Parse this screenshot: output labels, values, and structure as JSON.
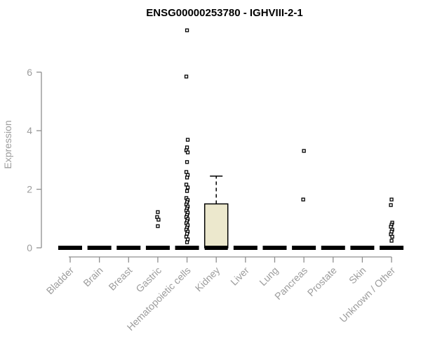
{
  "chart_data": {
    "type": "boxplot",
    "title": "ENSG00000253780 - IGHVIII-2-1",
    "xlabel": "",
    "ylabel": "Expression",
    "ylim": [
      0,
      7.6
    ],
    "yticks": [
      0,
      2,
      4,
      6
    ],
    "grid": false,
    "legend": "none",
    "categories": [
      "Bladder",
      "Brain",
      "Breast",
      "Gastric",
      "Hematopoietic cells",
      "Kidney",
      "Liver",
      "Lung",
      "Pancreas",
      "Prostate",
      "Skin",
      "Unknown / Other"
    ],
    "boxes": [
      {
        "category": "Bladder",
        "q1": 0,
        "median": 0,
        "q3": 0,
        "whisker_low": 0,
        "whisker_high": 0,
        "outliers": []
      },
      {
        "category": "Brain",
        "q1": 0,
        "median": 0,
        "q3": 0,
        "whisker_low": 0,
        "whisker_high": 0,
        "outliers": []
      },
      {
        "category": "Breast",
        "q1": 0,
        "median": 0,
        "q3": 0,
        "whisker_low": 0,
        "whisker_high": 0,
        "outliers": []
      },
      {
        "category": "Gastric",
        "q1": 0,
        "median": 0,
        "q3": 0,
        "whisker_low": 0,
        "whisker_high": 0,
        "outliers": [
          1.22,
          1.05,
          0.96,
          0.74
        ]
      },
      {
        "category": "Hematopoietic cells",
        "q1": 0,
        "median": 0,
        "q3": 0,
        "whisker_low": 0,
        "whisker_high": 0,
        "outliers": [
          7.43,
          5.85,
          3.69,
          3.43,
          3.33,
          3.26,
          2.93,
          2.59,
          2.49,
          2.4,
          2.16,
          2.06,
          1.94,
          1.7,
          1.63,
          1.56,
          1.48,
          1.41,
          1.34,
          1.27,
          1.2,
          1.12,
          1.05,
          0.98,
          0.91,
          0.84,
          0.77,
          0.69,
          0.62,
          0.55,
          0.48,
          0.38,
          0.29,
          0.19
        ]
      },
      {
        "category": "Kidney",
        "q1": 0,
        "median": 0,
        "q3": 1.5,
        "whisker_low": 0,
        "whisker_high": 2.45,
        "outliers": []
      },
      {
        "category": "Liver",
        "q1": 0,
        "median": 0,
        "q3": 0,
        "whisker_low": 0,
        "whisker_high": 0,
        "outliers": []
      },
      {
        "category": "Lung",
        "q1": 0,
        "median": 0,
        "q3": 0,
        "whisker_low": 0,
        "whisker_high": 0,
        "outliers": []
      },
      {
        "category": "Pancreas",
        "q1": 0,
        "median": 0,
        "q3": 0,
        "whisker_low": 0,
        "whisker_high": 0,
        "outliers": [
          3.31,
          1.65
        ]
      },
      {
        "category": "Prostate",
        "q1": 0,
        "median": 0,
        "q3": 0,
        "whisker_low": 0,
        "whisker_high": 0,
        "outliers": []
      },
      {
        "category": "Skin",
        "q1": 0,
        "median": 0,
        "q3": 0,
        "whisker_low": 0,
        "whisker_high": 0,
        "outliers": []
      },
      {
        "category": "Unknown / Other",
        "q1": 0,
        "median": 0,
        "q3": 0,
        "whisker_low": 0,
        "whisker_high": 0,
        "outliers": [
          1.65,
          1.46,
          0.86,
          0.79,
          0.72,
          0.62,
          0.55,
          0.46,
          0.38,
          0.24
        ]
      }
    ],
    "colors": {
      "box_fill": "#ECE8CD",
      "box_stroke": "#000000",
      "median": "#000000",
      "outlier_stroke": "#000000",
      "axis_line": "#8F8F8F",
      "axis_text": "#9C9C9C",
      "title_text": "#000000",
      "background": "#FFFFFF"
    }
  }
}
